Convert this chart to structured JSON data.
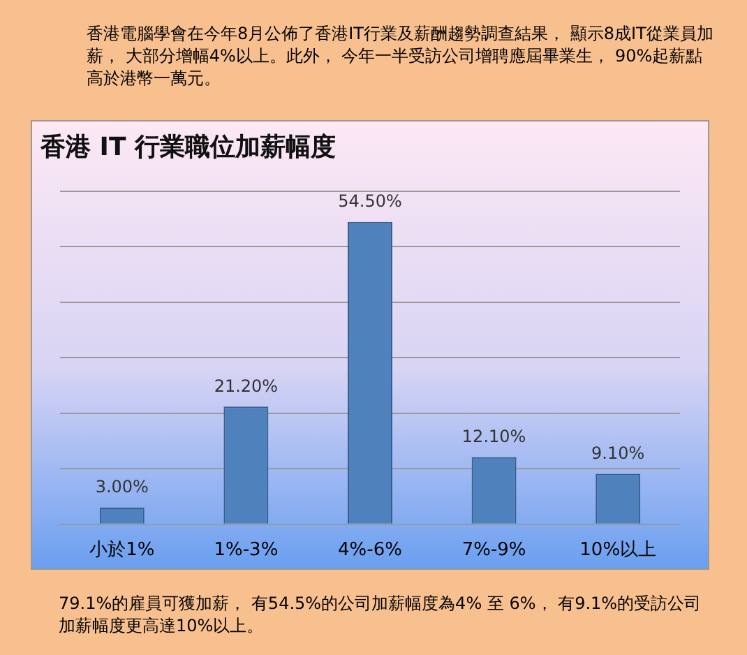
{
  "chart_data": {
    "type": "bar",
    "title": "香港 IT 行業職位加薪幅度",
    "annotations": [
      "香港電腦學會在今年8月公佈了香港IT行業及薪酬趨勢調查結果， 顯示8成IT從業員加薪， 大部分增幅4%以上。此外， 今年一半受訪公司增聘應屆畢業生， 90%起薪點高於港幣一萬元。",
      "79.1%的雇員可獲加薪， 有54.5%的公司加薪幅度為4% 至 6%， 有9.1%的受訪公司加薪幅度更高達10%以上。"
    ],
    "categories": [
      "小於1%",
      "1%-3%",
      "4%-6%",
      "7%-9%",
      "10%以上"
    ],
    "values": [
      3.0,
      21.2,
      54.5,
      12.1,
      9.1
    ],
    "value_labels": [
      "3.00%",
      "21.20%",
      "54.50%",
      "12.10%",
      "9.10%"
    ],
    "color": "#4f81bd",
    "ylim": [
      0,
      60
    ],
    "yticks": [
      {
        "value": 0,
        "label": null
      },
      {
        "value": 10,
        "label": null
      },
      {
        "value": 20,
        "label": null
      },
      {
        "value": 30,
        "label": null
      },
      {
        "value": 40,
        "label": null
      },
      {
        "value": 50,
        "label": null
      },
      {
        "value": 60,
        "label": null
      }
    ],
    "grid": "y",
    "tick_labels": "x",
    "legend": false
  }
}
